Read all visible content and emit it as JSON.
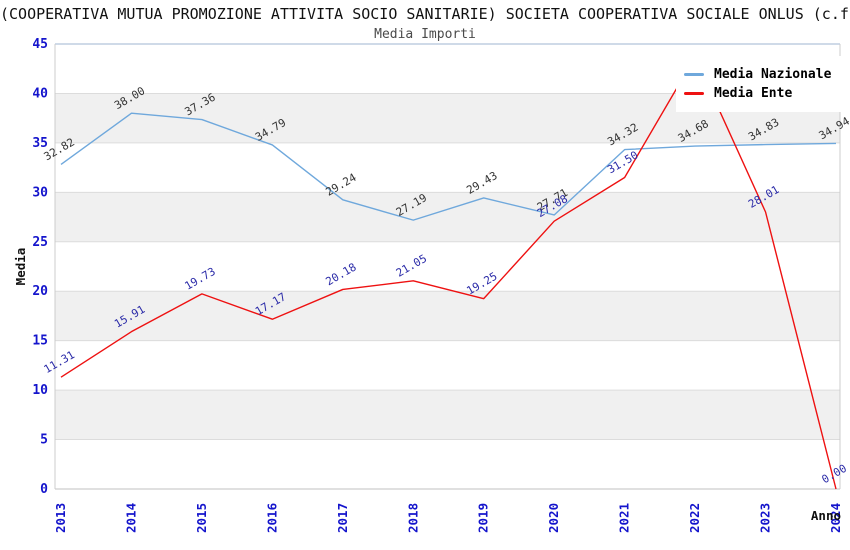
{
  "header": {
    "title": "(COOPERATIVA MUTUA PROMOZIONE ATTIVITA SOCIO SANITARIE) SOCIETA COOPERATIVA SOCIALE ONLUS (c.f",
    "subtitle": "Media Importi"
  },
  "legend": [
    {
      "label": "Media Nazionale",
      "color": "#6FA8DC"
    },
    {
      "label": "Media Ente",
      "color": "#EE1111"
    }
  ],
  "axes": {
    "y_label": "Media",
    "x_label": "Anno",
    "y_ticks": [
      "45",
      "40",
      "35",
      "30",
      "25",
      "20",
      "15",
      "10",
      "5",
      "0"
    ],
    "tick_color": "#1414CC"
  },
  "chart_data": {
    "type": "line",
    "title": "Media Importi",
    "xlabel": "Anno",
    "ylabel": "Media",
    "ylim": [
      0,
      45
    ],
    "grid": "horizontal-5-step-with-alternating-bands",
    "legend_position": "top-right-inside",
    "categories": [
      "2013",
      "2014",
      "2015",
      "2016",
      "2017",
      "2018",
      "2019",
      "2020",
      "2021",
      "2022",
      "2023",
      "2024"
    ],
    "series": [
      {
        "name": "Media Nazionale",
        "color": "#6FA8DC",
        "label_color": "#333333",
        "values": [
          32.82,
          38.0,
          37.36,
          34.79,
          29.24,
          27.19,
          29.43,
          27.71,
          34.32,
          34.68,
          34.83,
          34.94
        ],
        "labels": [
          "32.82",
          "38.00",
          "37.36",
          "34.79",
          "29.24",
          "27.19",
          "29.43",
          "27.71",
          "34.32",
          "34.68",
          "34.83",
          "34.94"
        ]
      },
      {
        "name": "Media Ente",
        "color": "#EE1111",
        "label_color": "#2B2BA8",
        "values": [
          11.31,
          15.91,
          19.73,
          17.17,
          20.18,
          21.05,
          19.25,
          27.08,
          31.5,
          43.7,
          28.01,
          0.0
        ],
        "labels": [
          "11.31",
          "15.91",
          "19.73",
          "17.17",
          "20.18",
          "21.05",
          "19.25",
          "27.08",
          "31.50",
          "",
          "28.01",
          "0.00"
        ],
        "note": "2022 peak label is hidden behind the legend box; 43.7 estimated from line apex"
      }
    ]
  }
}
